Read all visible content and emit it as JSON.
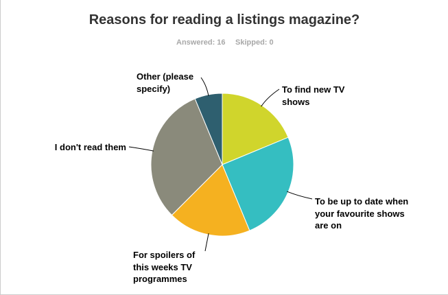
{
  "chart_data": {
    "type": "pie",
    "title": "Reasons for reading a listings magazine?",
    "answered": "Answered: 16",
    "skipped": "Skipped: 0",
    "categories": [
      "To find new TV shows",
      "To be up to date when your favourite shows are on",
      "For spoilers of this weeks TV programmes",
      "I don't read them",
      "Other (please specify)"
    ],
    "values": [
      18.75,
      25,
      18.75,
      31.25,
      6.25
    ],
    "colors": [
      "#d0d52c",
      "#35bec1",
      "#f5b120",
      "#8a8a7b",
      "#2e5f6f"
    ]
  }
}
